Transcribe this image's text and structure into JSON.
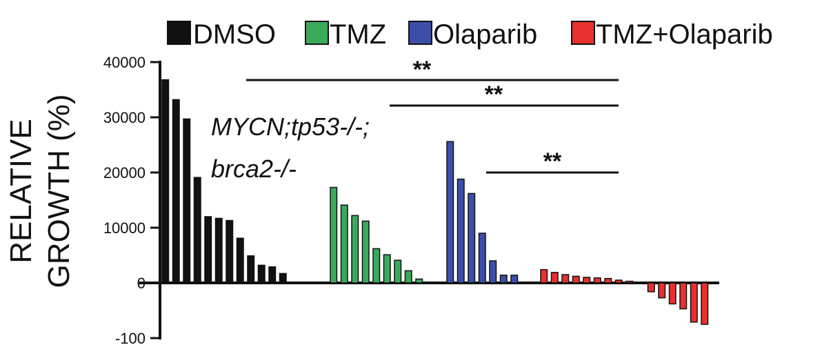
{
  "chart_data": {
    "type": "bar",
    "ylabel": [
      "RELATIVE",
      "GROWTH (%)"
    ],
    "yticks": [
      {
        "value": 40000,
        "label": "40000"
      },
      {
        "value": 30000,
        "label": "30000"
      },
      {
        "value": 20000,
        "label": "20000"
      },
      {
        "value": 10000,
        "label": "10000"
      },
      {
        "value": 0,
        "label": "0"
      },
      {
        "value": -100,
        "label": "-100"
      }
    ],
    "colors": {
      "DMSO": "#111111",
      "TMZ": "#3aaa5b",
      "Olaparib": "#3c4fa8",
      "TMZ+Olaparib": "#e8302f"
    },
    "series": [
      {
        "name": "DMSO",
        "values": [
          36800,
          33200,
          29700,
          19100,
          12000,
          11700,
          11300,
          8100,
          4900,
          3200,
          2900,
          1700
        ]
      },
      {
        "name": "TMZ",
        "values": [
          17300,
          14100,
          12200,
          11200,
          6200,
          5100,
          4100,
          2200,
          700
        ]
      },
      {
        "name": "Olaparib",
        "values": [
          25600,
          18800,
          16200,
          9000,
          4000,
          1400,
          1400
        ]
      },
      {
        "name": "TMZ+Olaparib",
        "values": [
          2400,
          1900,
          1500,
          1200,
          1000,
          900,
          800,
          500,
          300,
          -16,
          -27,
          -38,
          -47,
          -71,
          -75
        ]
      }
    ],
    "annotation": [
      "MYCN;tp53-/-;",
      "brca2-/-"
    ],
    "significance": [
      "**",
      "**",
      "**"
    ],
    "legend_position": "top"
  }
}
